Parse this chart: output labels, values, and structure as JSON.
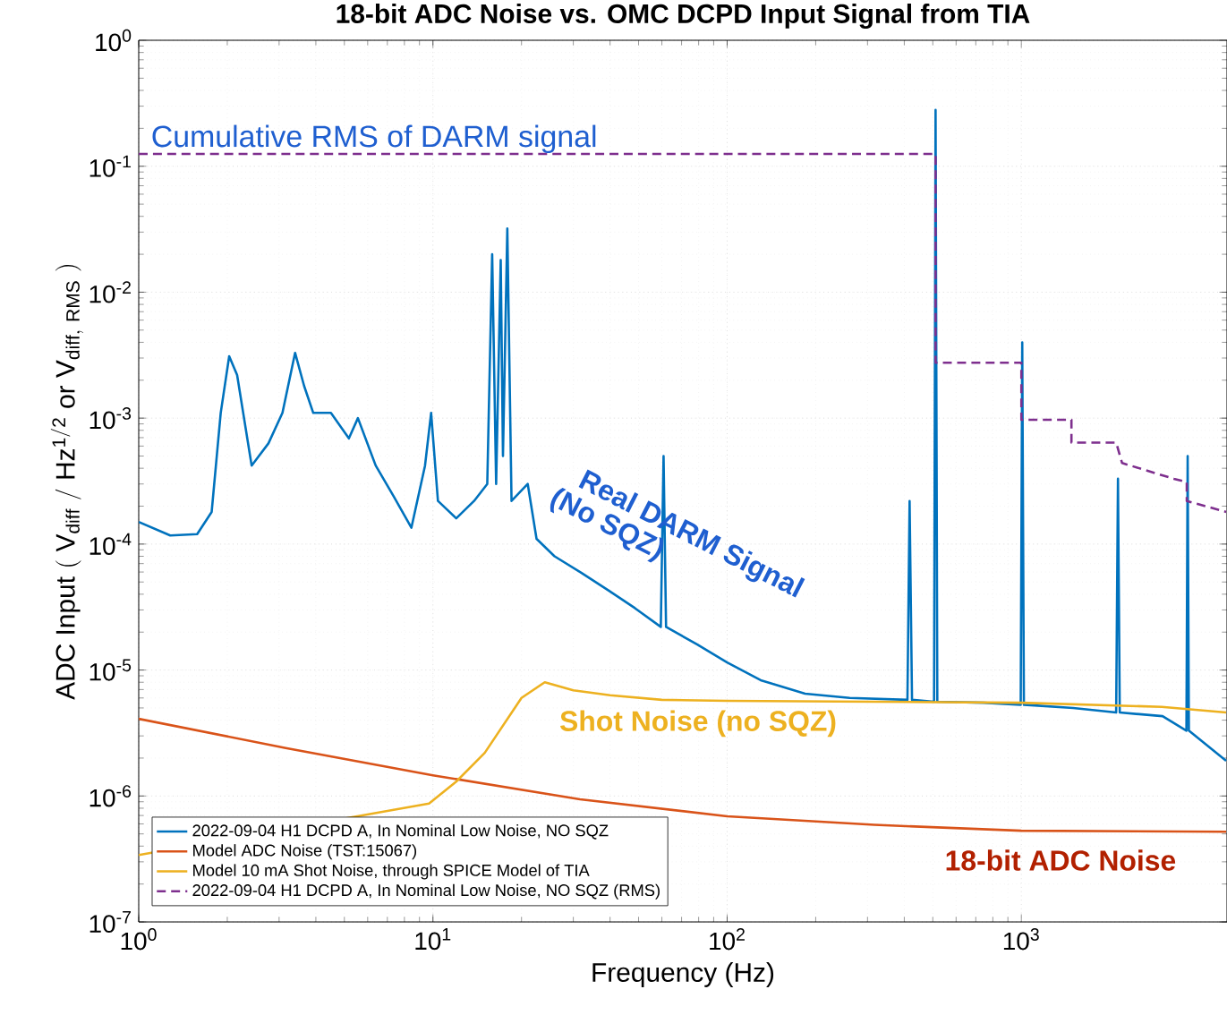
{
  "chart_data": {
    "type": "line",
    "title": "18-bit ADC Noise vs. OMC DCPD Input Signal from TIA",
    "xlabel": "Frequency (Hz)",
    "ylabel": "\\mathrm{ADC\\ Input\\ (\\ V_{diff}\\ /\\ Hz^{1/2}\\ or\\ V_{diff,\\ RMS}\\ )}",
    "log": "xy",
    "grid": true,
    "legend": "bottom left",
    "marker": "none",
    "xlim": [
      1,
      5000
    ],
    "ylim": [
      1e-07,
      1
    ],
    "xticks": [
      {
        "value": 1,
        "label": "10$^{0}$"
      },
      {
        "value": 10,
        "label": "10$^{1}$"
      },
      {
        "value": 100,
        "label": "10$^{2}$"
      },
      {
        "value": 1000,
        "label": "10$^{3}$"
      }
    ],
    "yticks": [
      {
        "value": 1e-07,
        "label": "10$^{-7}$"
      },
      {
        "value": 1e-06,
        "label": "10$^{-6}$"
      },
      {
        "value": 1e-05,
        "label": "10$^{-5}$"
      },
      {
        "value": 0.0001,
        "label": "10$^{-4}$"
      },
      {
        "value": 0.001,
        "label": "10$^{-3}$"
      },
      {
        "value": 0.01,
        "label": "10$^{-2}$"
      },
      {
        "value": 0.1,
        "label": "10$^{-1}$"
      },
      {
        "value": 1,
        "label": "10$^{0}$"
      }
    ],
    "series": [
      {
        "name": "2022-09-04 H1 DCPD A, In Nominal Low Noise, NO SQZ",
        "color": "#0072bd",
        "line_style": "solid",
        "x": [
          1,
          1.28,
          1.58,
          1.77,
          1.9,
          2.03,
          2.16,
          2.42,
          2.76,
          3.08,
          3.4,
          3.65,
          3.92,
          4.5,
          5.18,
          5.56,
          6.39,
          7.35,
          8.45,
          9.4,
          9.86,
          10.4,
          12,
          13.8,
          15.3,
          15.9,
          16.4,
          17,
          17.3,
          17.9,
          18.5,
          21,
          22.5,
          25.9,
          32,
          39.4,
          48.6,
          59.5,
          60.8,
          62,
          79,
          100,
          130,
          184,
          261,
          410,
          417,
          425,
          505,
          511,
          518,
          745,
          995,
          1007,
          1020,
          1500,
          2100,
          2130,
          2160,
          3020,
          3640,
          3675,
          3710,
          4966
        ],
        "values": [
          0.00015,
          0.000117,
          0.00012,
          0.00018,
          0.0011,
          0.0031,
          0.0022,
          0.00042,
          0.00063,
          0.0011,
          0.0033,
          0.0018,
          0.0011,
          0.0011,
          0.00069,
          0.001,
          0.00042,
          0.00024,
          0.000135,
          0.00042,
          0.0011,
          0.00022,
          0.00016,
          0.00022,
          0.0003,
          0.02,
          0.0003,
          0.018,
          0.0005,
          0.032,
          0.00022,
          0.0003,
          0.00011,
          8e-05,
          5.9e-05,
          4.3e-05,
          3.1e-05,
          2.2e-05,
          0.0005,
          2.2e-05,
          1.6e-05,
          1.15e-05,
          8.3e-06,
          6.5e-06,
          6e-06,
          5.8e-06,
          0.00022,
          5.8e-06,
          5.6e-06,
          0.28,
          5.6e-06,
          5.5e-06,
          5.3e-06,
          0.004,
          5.3e-06,
          5e-06,
          4.6e-06,
          0.00033,
          4.6e-06,
          4.3e-06,
          3.3e-06,
          0.0005,
          3.3e-06,
          1.9e-06
        ]
      },
      {
        "name": "Model ADC Noise (TST:15067)",
        "color": "#d95319",
        "line_style": "solid",
        "x": [
          1,
          3.16,
          10,
          31.6,
          100,
          316,
          1000,
          4966
        ],
        "values": [
          4.1e-06,
          2.4e-06,
          1.46e-06,
          9.4e-07,
          6.9e-07,
          5.9e-07,
          5.3e-07,
          5.2e-07
        ]
      },
      {
        "name": "Model 10 mA Shot Noise, through SPICE Model of TIA",
        "color": "#edb120",
        "line_style": "solid",
        "x": [
          1,
          9.7,
          12,
          15,
          20,
          24,
          30,
          40,
          60,
          100,
          1000,
          3000,
          4966
        ],
        "values": [
          3.4e-07,
          8.7e-07,
          1.3e-06,
          2.2e-06,
          6e-06,
          8e-06,
          6.9e-06,
          6.3e-06,
          5.8e-06,
          5.7e-06,
          5.5e-06,
          5.1e-06,
          4.6e-06
        ]
      },
      {
        "name": "2022-09-04 H1 DCPD A, In Nominal Low Noise, NO SQZ (RMS)",
        "color": "#7e2f8e",
        "line_style": "dashed",
        "x": [
          1,
          511,
          511,
          1000,
          1000,
          1480,
          1480,
          2100,
          2200,
          3300,
          3650,
          3650,
          4966
        ],
        "values": [
          0.125,
          0.125,
          0.00275,
          0.00275,
          0.00097,
          0.00097,
          0.00064,
          0.00064,
          0.00044,
          0.00033,
          0.00031,
          0.00022,
          0.00018
        ]
      }
    ],
    "annotations": [
      "Cumulative RMS of DARM signal",
      "Real DARM Signal",
      "(No SQZ)",
      "Shot Noise (no SQZ)",
      "18-bit ADC Noise"
    ]
  }
}
